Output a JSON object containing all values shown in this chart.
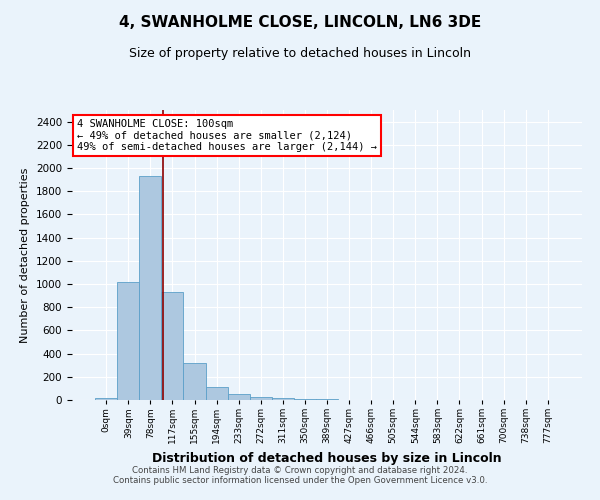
{
  "title1": "4, SWANHOLME CLOSE, LINCOLN, LN6 3DE",
  "title2": "Size of property relative to detached houses in Lincoln",
  "xlabel": "Distribution of detached houses by size in Lincoln",
  "ylabel": "Number of detached properties",
  "footer1": "Contains HM Land Registry data © Crown copyright and database right 2024.",
  "footer2": "Contains public sector information licensed under the Open Government Licence v3.0.",
  "categories": [
    "0sqm",
    "39sqm",
    "78sqm",
    "117sqm",
    "155sqm",
    "194sqm",
    "233sqm",
    "272sqm",
    "311sqm",
    "350sqm",
    "389sqm",
    "427sqm",
    "466sqm",
    "505sqm",
    "544sqm",
    "583sqm",
    "622sqm",
    "661sqm",
    "700sqm",
    "738sqm",
    "777sqm"
  ],
  "values": [
    20,
    1020,
    1930,
    930,
    320,
    115,
    55,
    25,
    15,
    10,
    8,
    0,
    0,
    0,
    0,
    0,
    0,
    0,
    0,
    0,
    0
  ],
  "bar_color": "#adc8e0",
  "bar_edge_color": "#5b9fc9",
  "background_color": "#eaf3fb",
  "red_line_x": 2.56,
  "annotation_text": "4 SWANHOLME CLOSE: 100sqm\n← 49% of detached houses are smaller (2,124)\n49% of semi-detached houses are larger (2,144) →",
  "annotation_box_color": "white",
  "annotation_border_color": "red",
  "ylim": [
    0,
    2500
  ],
  "yticks": [
    0,
    200,
    400,
    600,
    800,
    1000,
    1200,
    1400,
    1600,
    1800,
    2000,
    2200,
    2400
  ]
}
